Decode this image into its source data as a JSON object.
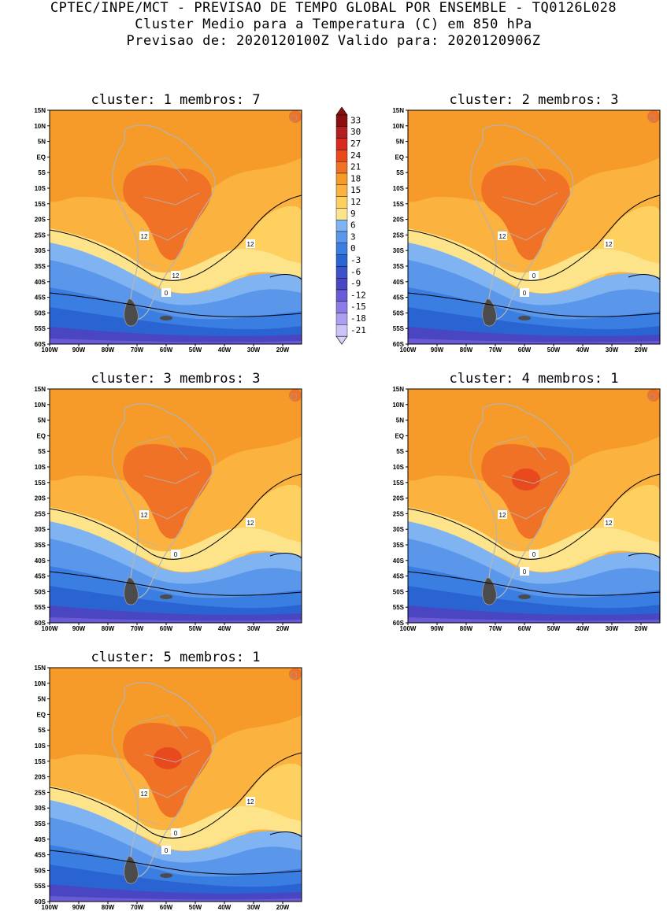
{
  "header": {
    "line1": "CPTEC/INPE/MCT - PREVISAO DE TEMPO GLOBAL POR ENSEMBLE - TQ0126L028",
    "line2": "Cluster Medio para a Temperatura (C) em 850 hPa",
    "line3": "Previsao de: 2020120100Z   Valido para: 2020120906Z"
  },
  "axes": {
    "lat_labels": [
      "15N",
      "10N",
      "5N",
      "EQ",
      "5S",
      "10S",
      "15S",
      "20S",
      "25S",
      "30S",
      "35S",
      "40S",
      "45S",
      "50S",
      "55S",
      "60S"
    ],
    "lon_labels": [
      "100W",
      "90W",
      "80W",
      "70W",
      "60W",
      "50W",
      "40W",
      "30W",
      "20W"
    ]
  },
  "colorbar": {
    "levels": [
      "33",
      "30",
      "27",
      "24",
      "21",
      "18",
      "15",
      "12",
      "9",
      "6",
      "3",
      "0",
      "-3",
      "-6",
      "-9",
      "-12",
      "-15",
      "-18",
      "-21"
    ],
    "colors": [
      "#8b0f0f",
      "#b41e1e",
      "#d62b1e",
      "#e84a1e",
      "#f07226",
      "#f69a2a",
      "#fbb23e",
      "#fdd060",
      "#fde48a",
      "#7fb3f2",
      "#5a97ea",
      "#3a7ee2",
      "#2a64d2",
      "#3b52c8",
      "#4a45c0",
      "#6a5ad6",
      "#8a7ce4",
      "#ab9fee",
      "#cdc3f7"
    ],
    "top_arrow_color": "#8b0f0f",
    "bottom_arrow_color": "#d8d2f7"
  },
  "panels": [
    {
      "title": "cluster: 1   membros: 7",
      "contour_labels": [
        "12",
        "12",
        "12",
        "0"
      ]
    },
    {
      "title": "cluster: 2   membros: 3",
      "contour_labels": [
        "12",
        "12",
        "0",
        "0"
      ]
    },
    {
      "title": "cluster: 3   membros: 3",
      "contour_labels": [
        "12",
        "12",
        "0"
      ]
    },
    {
      "title": "cluster: 4   membros: 1",
      "contour_labels": [
        "12",
        "12",
        "0",
        "0"
      ]
    },
    {
      "title": "cluster: 5   membros: 1",
      "contour_labels": [
        "12",
        "12",
        "0",
        "0"
      ]
    }
  ]
}
